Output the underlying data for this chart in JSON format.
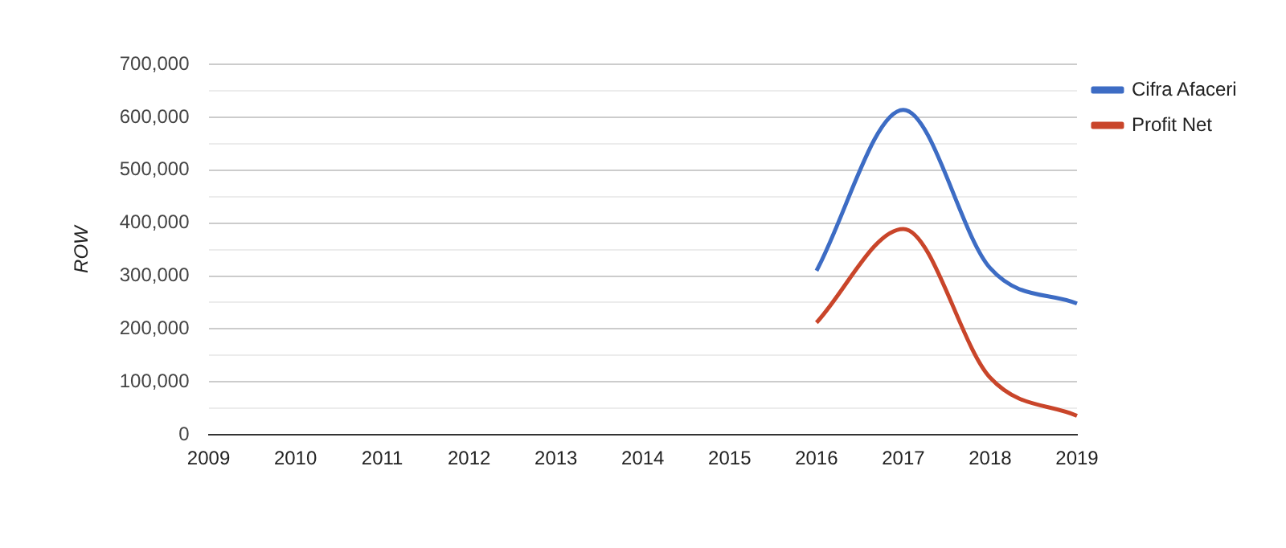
{
  "chart_data": {
    "type": "line",
    "ylabel": "ROW",
    "categories": [
      "2009",
      "2010",
      "2011",
      "2012",
      "2013",
      "2014",
      "2015",
      "2016",
      "2017",
      "2018",
      "2019"
    ],
    "series": [
      {
        "name": "Cifra Afaceri",
        "color": "#3d6cc4",
        "values": [
          null,
          null,
          null,
          null,
          null,
          null,
          null,
          310000,
          614000,
          315000,
          248000
        ]
      },
      {
        "name": "Profit Net",
        "color": "#c9452a",
        "values": [
          null,
          null,
          null,
          null,
          null,
          null,
          null,
          212000,
          389000,
          108000,
          36000
        ]
      }
    ],
    "ylim": [
      0,
      700000
    ],
    "yticks": [
      0,
      {
        "value": 50000,
        "label": null
      },
      {
        "value": 100000,
        "label": "100,000"
      },
      {
        "value": 150000,
        "label": null
      },
      {
        "value": 200000,
        "label": "200,000"
      },
      {
        "value": 250000,
        "label": null
      },
      {
        "value": 300000,
        "label": "300,000"
      },
      {
        "value": 350000,
        "label": null
      },
      {
        "value": 400000,
        "label": "400,000"
      },
      {
        "value": 450000,
        "label": null
      },
      {
        "value": 500000,
        "label": "500,000"
      },
      {
        "value": 550000,
        "label": null
      },
      {
        "value": 600000,
        "label": "600,000"
      },
      {
        "value": 650000,
        "label": null
      },
      {
        "value": 700000,
        "label": "700,000"
      }
    ],
    "grid": "y",
    "legend": "top right",
    "marker": "none",
    "line_style": "solid"
  }
}
